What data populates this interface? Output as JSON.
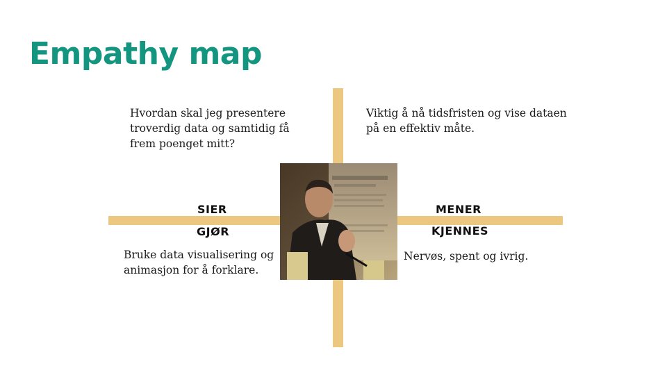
{
  "slide": {
    "title": "Empathy map",
    "colors": {
      "title": "#13957f",
      "axis": "#ecc77f",
      "text": "#1a1a1a"
    }
  },
  "quadrants": {
    "top_left": "Hvordan skal jeg presentere troverdig data og samtidig få frem poenget mitt?",
    "top_right": "Viktig å nå tidsfristen og vise dataen på en effektiv måte.",
    "bottom_left": "Bruke data visualisering og animasjon for å forklare.",
    "bottom_right": "Nervøs, spent og ivrig."
  },
  "labels": {
    "sier": "SIER",
    "gjor": "GJØR",
    "mener": "MENER",
    "kjennes": "KJENNES"
  },
  "photo": {
    "icon": "person-speaking-photo"
  }
}
